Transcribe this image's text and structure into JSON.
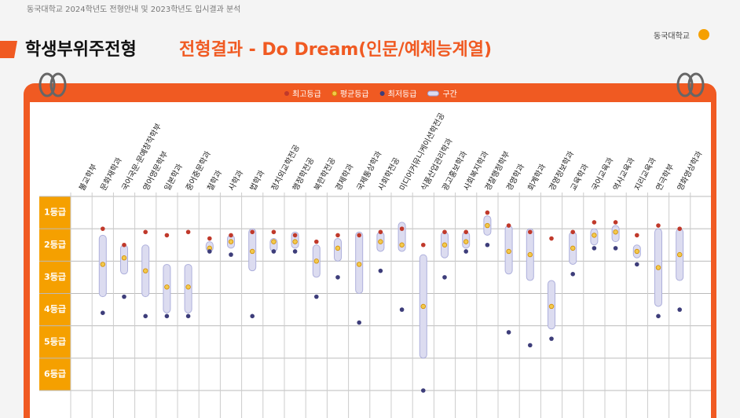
{
  "header": {
    "subtitle": "동국대학교 2024학년도 전형안내 및 2023학년도 입시결과 분석",
    "title": "학생부위주전형",
    "title_highlight": "전형결과 - Do Dream(인문/예체능계열)",
    "logo": "동국대학교"
  },
  "chart_data": {
    "type": "range",
    "categories": [
      "불교학부",
      "문화재학과",
      "국어국문·문예창작학부",
      "영어영문학부",
      "일본학과",
      "중어중문학과",
      "철학과",
      "사학과",
      "법학과",
      "정치외교학전공",
      "행정학전공",
      "북한학전공",
      "경제학과",
      "국제통상학과",
      "사회학전공",
      "미디어커뮤니케이션학전공",
      "식품산업관리학과",
      "광고홍보학과",
      "사회복지학과",
      "경찰행정학부",
      "경영학과",
      "회계학과",
      "경영정보학과",
      "교육학과",
      "국어교육과",
      "역사교육과",
      "지리교육과",
      "연극학부",
      "영화영상학과"
    ],
    "series": [
      {
        "name": "최고등급",
        "color": "#c0392b",
        "values": [
          null,
          2.0,
          2.5,
          2.1,
          2.2,
          2.1,
          2.3,
          2.2,
          2.1,
          2.1,
          2.2,
          2.4,
          2.2,
          2.2,
          2.1,
          2.0,
          2.5,
          2.1,
          2.1,
          1.5,
          1.9,
          2.1,
          2.3,
          2.1,
          1.8,
          1.8,
          2.2,
          1.9,
          2.0
        ]
      },
      {
        "name": "평균등급",
        "color": "#f2c94c",
        "values": [
          null,
          3.1,
          2.9,
          3.3,
          3.8,
          3.8,
          2.6,
          2.4,
          2.7,
          2.4,
          2.4,
          3.0,
          2.6,
          3.1,
          2.4,
          2.5,
          4.4,
          2.5,
          2.4,
          1.9,
          2.7,
          2.8,
          4.4,
          2.6,
          2.2,
          2.1,
          2.7,
          3.2,
          2.8
        ]
      },
      {
        "name": "최저등급",
        "color": "#3d3d7a",
        "values": [
          null,
          4.6,
          4.1,
          4.7,
          4.7,
          4.7,
          2.7,
          2.8,
          4.7,
          2.7,
          2.7,
          4.1,
          3.5,
          4.9,
          3.3,
          4.5,
          7.0,
          3.5,
          2.7,
          2.5,
          5.2,
          5.6,
          5.4,
          3.4,
          2.6,
          2.6,
          3.1,
          4.7,
          4.5
        ]
      },
      {
        "name": "구간",
        "color": "#dcdcf0",
        "values": [
          null,
          [
            2.2,
            4.1
          ],
          [
            2.5,
            3.4
          ],
          [
            2.5,
            4.1
          ],
          [
            3.1,
            4.6
          ],
          [
            3.1,
            4.6
          ],
          [
            2.4,
            2.7
          ],
          [
            2.2,
            2.6
          ],
          [
            2.0,
            3.3
          ],
          [
            2.3,
            2.7
          ],
          [
            2.1,
            2.6
          ],
          [
            2.5,
            3.5
          ],
          [
            2.3,
            3.0
          ],
          [
            2.1,
            4.0
          ],
          [
            2.1,
            2.7
          ],
          [
            1.8,
            2.7
          ],
          [
            2.8,
            6.0
          ],
          [
            2.1,
            2.9
          ],
          [
            2.1,
            2.6
          ],
          [
            1.6,
            2.2
          ],
          [
            1.9,
            3.4
          ],
          [
            2.0,
            3.6
          ],
          [
            3.6,
            5.1
          ],
          [
            2.1,
            3.1
          ],
          [
            2.0,
            2.5
          ],
          [
            1.9,
            2.4
          ],
          [
            2.5,
            2.9
          ],
          [
            2.0,
            4.4
          ],
          [
            2.0,
            3.6
          ]
        ]
      }
    ],
    "ylim": [
      1,
      7
    ],
    "yticks": [
      {
        "value": 1,
        "label": "1등급"
      },
      {
        "value": 2,
        "label": "2등급"
      },
      {
        "value": 3,
        "label": "3등급"
      },
      {
        "value": 4,
        "label": "4등급"
      },
      {
        "value": 5,
        "label": "5등급"
      },
      {
        "value": 6,
        "label": "6등급"
      }
    ],
    "grid": true
  }
}
